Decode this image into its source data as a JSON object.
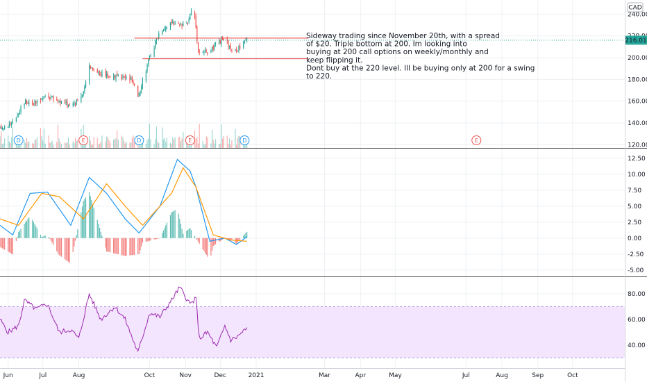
{
  "currency": "CAD",
  "last_price_label": "216.01",
  "colors": {
    "up": "#26a69a",
    "down": "#ef5350",
    "macd": "#2196f3",
    "signal": "#ff9800",
    "rsi": "#9c27b0",
    "rsi_band": "#f3e5fd",
    "level": "#e53935",
    "grid": "#eef0f3",
    "separator": "#555555"
  },
  "annotation": {
    "lines": [
      "Sideway trading since November 20th, with a spread",
      "of $20. Triple bottom at 200. Im looking into",
      "buying at 200 call options on weekly/monthly and",
      "keep flipping it.",
      "",
      "Dont buy at the 220 level. Ill be buying only at 200 for a swing",
      "to 220."
    ]
  },
  "chart_data": [
    {
      "type": "candlestick",
      "panel": "price",
      "y_ticks": [
        "240.00",
        "220.00",
        "200.00",
        "180.00",
        "160.00",
        "140.00",
        "120.00"
      ],
      "ylim": [
        117,
        253
      ],
      "x_range": [
        "2020-05-25",
        "2021-11-15"
      ],
      "x_ticks": [
        {
          "label": "Jun",
          "date": "2020-06-01"
        },
        {
          "label": "Jul",
          "date": "2020-07-01"
        },
        {
          "label": "Aug",
          "date": "2020-08-01"
        },
        {
          "label": "Oct",
          "date": "2020-10-01"
        },
        {
          "label": "Nov",
          "date": "2020-11-01"
        },
        {
          "label": "Dec",
          "date": "2020-12-01"
        },
        {
          "label": "2021",
          "date": "2021-01-01"
        },
        {
          "label": "Mar",
          "date": "2021-03-01"
        },
        {
          "label": "Apr",
          "date": "2021-04-01"
        },
        {
          "label": "May",
          "date": "2021-05-01"
        },
        {
          "label": "Jul",
          "date": "2021-07-01"
        },
        {
          "label": "Aug",
          "date": "2021-08-01"
        },
        {
          "label": "Sep",
          "date": "2021-09-01"
        },
        {
          "label": "Oct",
          "date": "2021-10-01"
        }
      ],
      "close_anchors": [
        [
          "2020-05-25",
          135
        ],
        [
          "2020-06-05",
          140
        ],
        [
          "2020-06-15",
          160
        ],
        [
          "2020-06-25",
          158
        ],
        [
          "2020-07-05",
          165
        ],
        [
          "2020-07-15",
          160
        ],
        [
          "2020-07-25",
          156
        ],
        [
          "2020-08-05",
          167
        ],
        [
          "2020-08-10",
          193
        ],
        [
          "2020-08-20",
          185
        ],
        [
          "2020-09-01",
          183
        ],
        [
          "2020-09-15",
          180
        ],
        [
          "2020-09-21",
          165
        ],
        [
          "2020-10-01",
          200
        ],
        [
          "2020-10-10",
          225
        ],
        [
          "2020-10-20",
          232
        ],
        [
          "2020-11-01",
          228
        ],
        [
          "2020-11-08",
          248
        ],
        [
          "2020-11-12",
          207
        ],
        [
          "2020-11-20",
          205
        ],
        [
          "2020-11-28",
          212
        ],
        [
          "2020-12-05",
          218
        ],
        [
          "2020-12-12",
          203
        ],
        [
          "2020-12-20",
          212
        ],
        [
          "2020-12-24",
          216
        ]
      ],
      "last_price": 216.01,
      "levels": [
        {
          "value": 218,
          "from": "2020-09-18",
          "to": "2021-02-15"
        },
        {
          "value": 199,
          "from": "2020-09-25",
          "to": "2021-02-15"
        }
      ],
      "events": [
        {
          "letter": "D",
          "date": "2020-06-10",
          "kind": "dividend"
        },
        {
          "letter": "E",
          "date": "2020-08-05",
          "kind": "earnings"
        },
        {
          "letter": "D",
          "date": "2020-09-22",
          "kind": "dividend"
        },
        {
          "letter": "E",
          "date": "2020-11-05",
          "kind": "earnings"
        },
        {
          "letter": "D",
          "date": "2020-12-22",
          "kind": "dividend"
        },
        {
          "letter": "E",
          "date": "2021-07-10",
          "kind": "earnings"
        }
      ]
    },
    {
      "type": "line",
      "panel": "macd",
      "y_ticks": [
        "12.50",
        "10.00",
        "7.50",
        "5.00",
        "2.50",
        "0.00",
        "-2.50",
        "-5.00"
      ],
      "ylim": [
        -6,
        14
      ],
      "series": [
        {
          "key": "macd",
          "anchors": [
            [
              "2020-05-25",
              2.0
            ],
            [
              "2020-06-05",
              0.5
            ],
            [
              "2020-06-20",
              7.0
            ],
            [
              "2020-07-05",
              7.2
            ],
            [
              "2020-07-25",
              2.0
            ],
            [
              "2020-08-10",
              9.5
            ],
            [
              "2020-08-25",
              7.0
            ],
            [
              "2020-09-10",
              3.0
            ],
            [
              "2020-09-22",
              0.8
            ],
            [
              "2020-10-10",
              5.0
            ],
            [
              "2020-10-25",
              12.3
            ],
            [
              "2020-11-05",
              10.5
            ],
            [
              "2020-11-10",
              8.0
            ],
            [
              "2020-11-22",
              -0.5
            ],
            [
              "2020-12-05",
              0.0
            ],
            [
              "2020-12-15",
              -1.0
            ],
            [
              "2020-12-24",
              0.2
            ]
          ]
        },
        {
          "key": "signal",
          "anchors": [
            [
              "2020-05-25",
              3.0
            ],
            [
              "2020-06-10",
              2.0
            ],
            [
              "2020-06-30",
              7.0
            ],
            [
              "2020-07-15",
              6.5
            ],
            [
              "2020-08-05",
              3.0
            ],
            [
              "2020-08-25",
              8.5
            ],
            [
              "2020-09-10",
              5.0
            ],
            [
              "2020-09-25",
              2.0
            ],
            [
              "2020-10-20",
              7.0
            ],
            [
              "2020-10-30",
              11.0
            ],
            [
              "2020-11-10",
              8.0
            ],
            [
              "2020-11-25",
              0.5
            ],
            [
              "2020-12-10",
              -0.3
            ],
            [
              "2020-12-24",
              -0.5
            ]
          ]
        }
      ]
    },
    {
      "type": "line",
      "panel": "rsi",
      "y_ticks": [
        "80.00",
        "60.00",
        "40.00"
      ],
      "ylim": [
        22,
        93
      ],
      "band": [
        30,
        70
      ],
      "series": [
        {
          "key": "rsi",
          "anchors": [
            [
              "2020-05-25",
              60
            ],
            [
              "2020-06-01",
              50
            ],
            [
              "2020-06-10",
              55
            ],
            [
              "2020-06-15",
              75
            ],
            [
              "2020-06-25",
              68
            ],
            [
              "2020-07-05",
              72
            ],
            [
              "2020-07-15",
              50
            ],
            [
              "2020-07-25",
              52
            ],
            [
              "2020-08-01",
              45
            ],
            [
              "2020-08-10",
              80
            ],
            [
              "2020-08-20",
              60
            ],
            [
              "2020-09-01",
              70
            ],
            [
              "2020-09-10",
              60
            ],
            [
              "2020-09-21",
              34
            ],
            [
              "2020-10-01",
              65
            ],
            [
              "2020-10-10",
              62
            ],
            [
              "2020-10-20",
              75
            ],
            [
              "2020-10-27",
              85
            ],
            [
              "2020-11-05",
              72
            ],
            [
              "2020-11-10",
              76
            ],
            [
              "2020-11-13",
              45
            ],
            [
              "2020-11-20",
              50
            ],
            [
              "2020-11-28",
              38
            ],
            [
              "2020-12-05",
              55
            ],
            [
              "2020-12-10",
              44
            ],
            [
              "2020-12-15",
              46
            ],
            [
              "2020-12-24",
              53
            ]
          ]
        }
      ]
    }
  ]
}
